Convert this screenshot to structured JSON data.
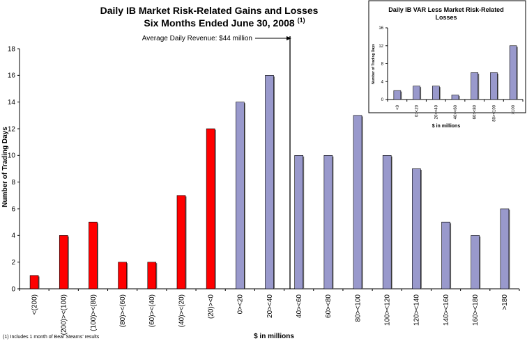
{
  "chart_data": [
    {
      "type": "bar",
      "title": "Daily IB Market Risk-Related Gains and Losses",
      "subtitle": "Six Months Ended June 30, 2008",
      "subtitle_superscript": "(1)",
      "xlabel": "$ in millions",
      "ylabel": "Number of Trading Days",
      "ylim": [
        0,
        18
      ],
      "yticks": [
        0,
        2,
        4,
        6,
        8,
        10,
        12,
        14,
        16,
        18
      ],
      "grid": false,
      "categories": [
        "<(200)",
        "(200)><(100)",
        "(100)><(80)",
        "(80)><(60)",
        "(60)><(40)",
        "(40)><(20)",
        "(20)><0",
        "0><20",
        "20><40",
        "40><60",
        "60><80",
        "80><100",
        "100><120",
        "120><140",
        "140><160",
        "160><180",
        ">180"
      ],
      "values": [
        1,
        4,
        5,
        2,
        2,
        7,
        12,
        14,
        16,
        10,
        10,
        13,
        10,
        9,
        5,
        4,
        6
      ],
      "colors": {
        "loss": "#ff0000",
        "gain": "#9999cc"
      },
      "annotation": {
        "text": "Average Daily Revenue: $44 million",
        "x_value": 44
      },
      "footnote": "(1) Includes 1 month of Bear Stearns' results"
    },
    {
      "type": "bar",
      "title": "Daily IB VAR Less Market Risk-Related Losses",
      "xlabel": "$ in millions",
      "ylabel": "Number of Trading Days",
      "ylim": [
        0,
        16
      ],
      "yticks": [
        0,
        4,
        8,
        12,
        16
      ],
      "grid": false,
      "categories": [
        "<0",
        "0><20",
        "20><40",
        "40><60",
        "60><80",
        "80><100",
        ">100"
      ],
      "values": [
        2,
        3,
        3,
        1,
        6,
        6,
        12
      ],
      "color": "#9999cc"
    }
  ]
}
